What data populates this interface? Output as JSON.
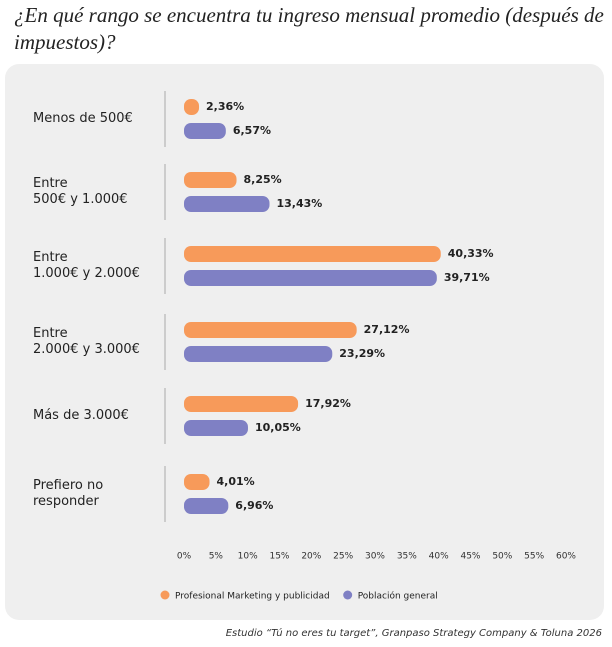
{
  "chart_data": {
    "type": "hbar",
    "title": "¿En qué rango se encuentra tu ingreso mensual promedio (después de impuestos)?",
    "categories": [
      "Menos de 500€",
      "Entre\n500€ y 1.000€",
      "Entre\n1.000€ y 2.000€",
      "Entre\n2.000€ y 3.000€",
      "Más de 3.000€",
      "Prefiero no\nresponder"
    ],
    "series": [
      {
        "name": "Profesional Marketing y publicidad",
        "color": "#f79a5a",
        "values": [
          2.36,
          8.25,
          40.33,
          27.12,
          17.92,
          4.01
        ],
        "value_labels": [
          "2,36%",
          "8,25%",
          "40,33%",
          "27,12%",
          "17,92%",
          "4,01%"
        ]
      },
      {
        "name": "Población general",
        "color": "#7f80c4",
        "values": [
          6.57,
          13.43,
          39.71,
          23.29,
          10.05,
          6.96
        ],
        "value_labels": [
          "6,57%",
          "13,43%",
          "39,71%",
          "23,29%",
          "10,05%",
          "6,96%"
        ]
      }
    ],
    "xlim": [
      0,
      60
    ],
    "xticks": [
      {
        "value": 0,
        "label": "0%"
      },
      {
        "value": 5,
        "label": "5%"
      },
      {
        "value": 10,
        "label": "10%"
      },
      {
        "value": 15,
        "label": "15%"
      },
      {
        "value": 20,
        "label": "20%"
      },
      {
        "value": 25,
        "label": "25%"
      },
      {
        "value": 30,
        "label": "30%"
      },
      {
        "value": 35,
        "label": "35%"
      },
      {
        "value": 40,
        "label": "40%"
      },
      {
        "value": 45,
        "label": "45%"
      },
      {
        "value": 50,
        "label": "50%"
      },
      {
        "value": 55,
        "label": "55%"
      },
      {
        "value": 60,
        "label": "60%"
      }
    ],
    "source": "Estudio “Tú no eres tu target”, Granpaso Strategy Company & Toluna 2026"
  }
}
